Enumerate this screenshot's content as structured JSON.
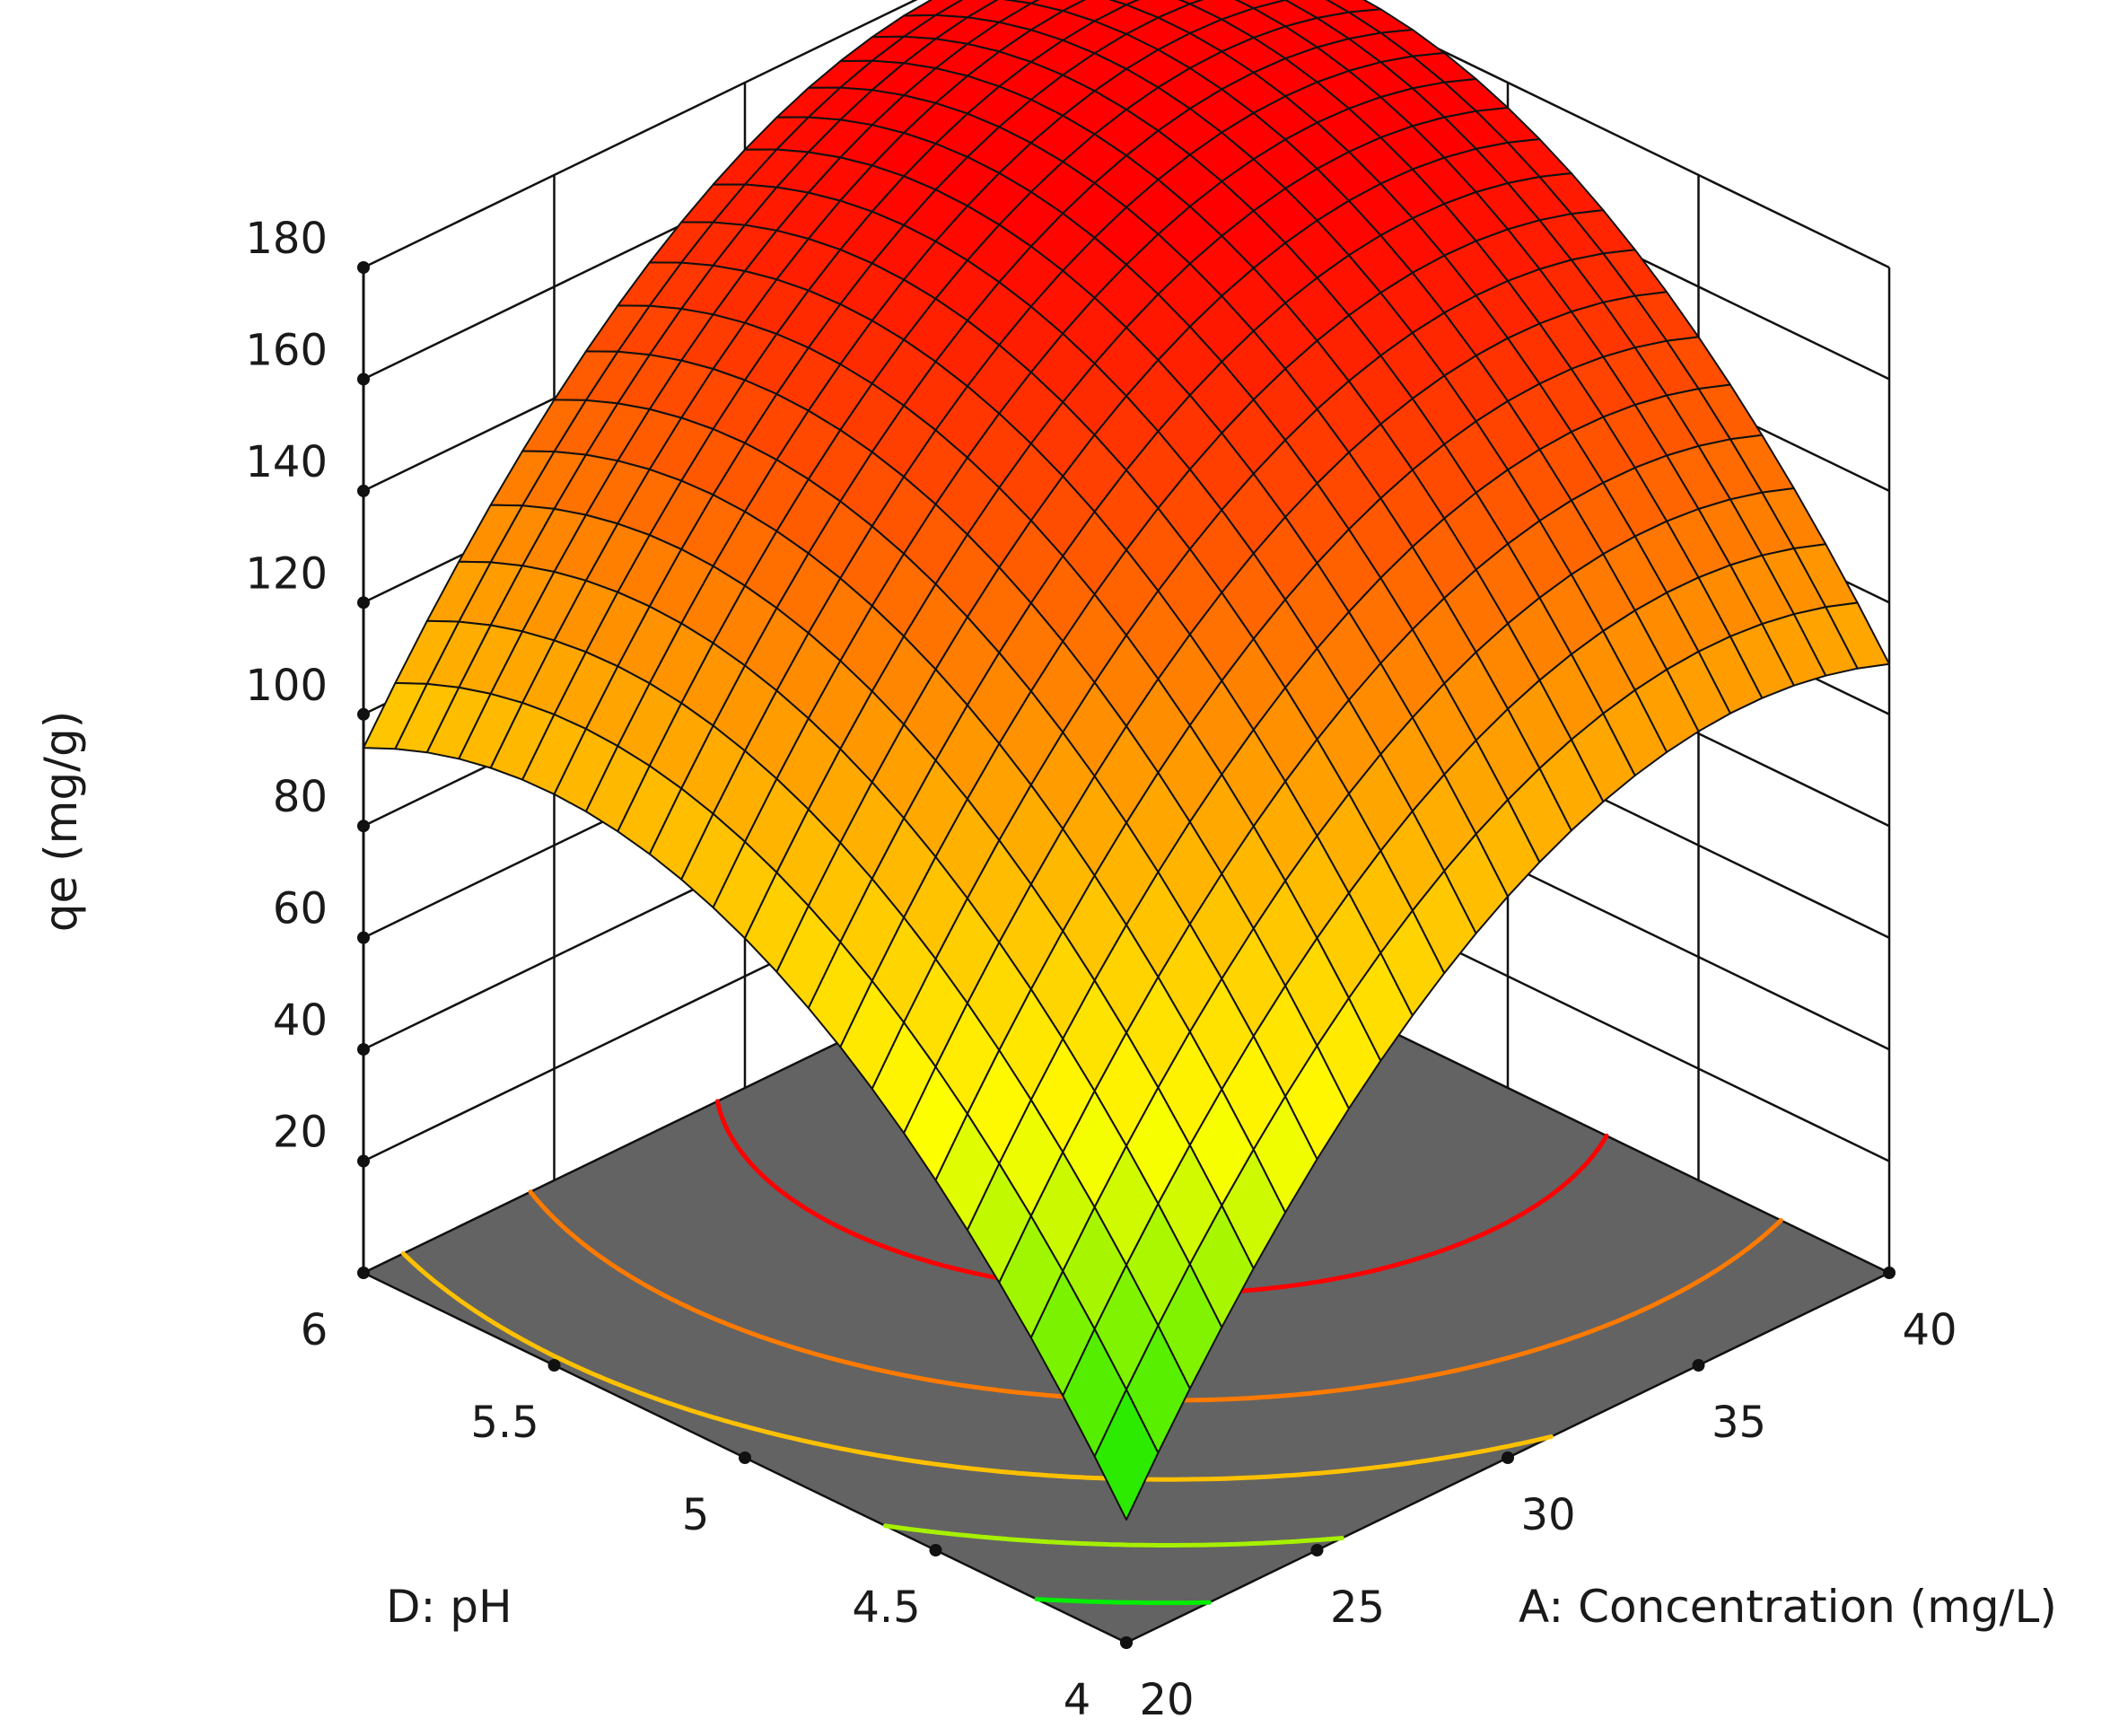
{
  "chart_data": {
    "type": "surface3d",
    "zlabel": "qe (mg/g)",
    "xlabel": "A: Concentration (mg/L)",
    "ylabel": "D: pH",
    "x_ticks": [
      "20",
      "25",
      "30",
      "35",
      "40"
    ],
    "y_ticks": [
      "4",
      "4.5",
      "5",
      "5.5",
      "6"
    ],
    "z_ticks": [
      "20",
      "40",
      "60",
      "80",
      "100",
      "120",
      "140",
      "160",
      "180"
    ],
    "xlim": [
      20,
      40
    ],
    "ylim": [
      4,
      6
    ],
    "zlim": [
      0,
      180
    ],
    "corner_values": [
      {
        "x": 20,
        "y": 4,
        "z": 22
      },
      {
        "x": 20,
        "y": 6,
        "z": 94
      },
      {
        "x": 40,
        "y": 4,
        "z": 109
      },
      {
        "x": 40,
        "y": 6,
        "z": 172
      }
    ],
    "color_scale": [
      "#00e600",
      "#ffff00",
      "#ff8c00",
      "#ff0000"
    ],
    "contour_colors": [
      "#00ee00",
      "#a6f000",
      "#ffc000",
      "#ff7a00",
      "#ff0000"
    ],
    "floor_color": "#636363",
    "grid": true
  }
}
